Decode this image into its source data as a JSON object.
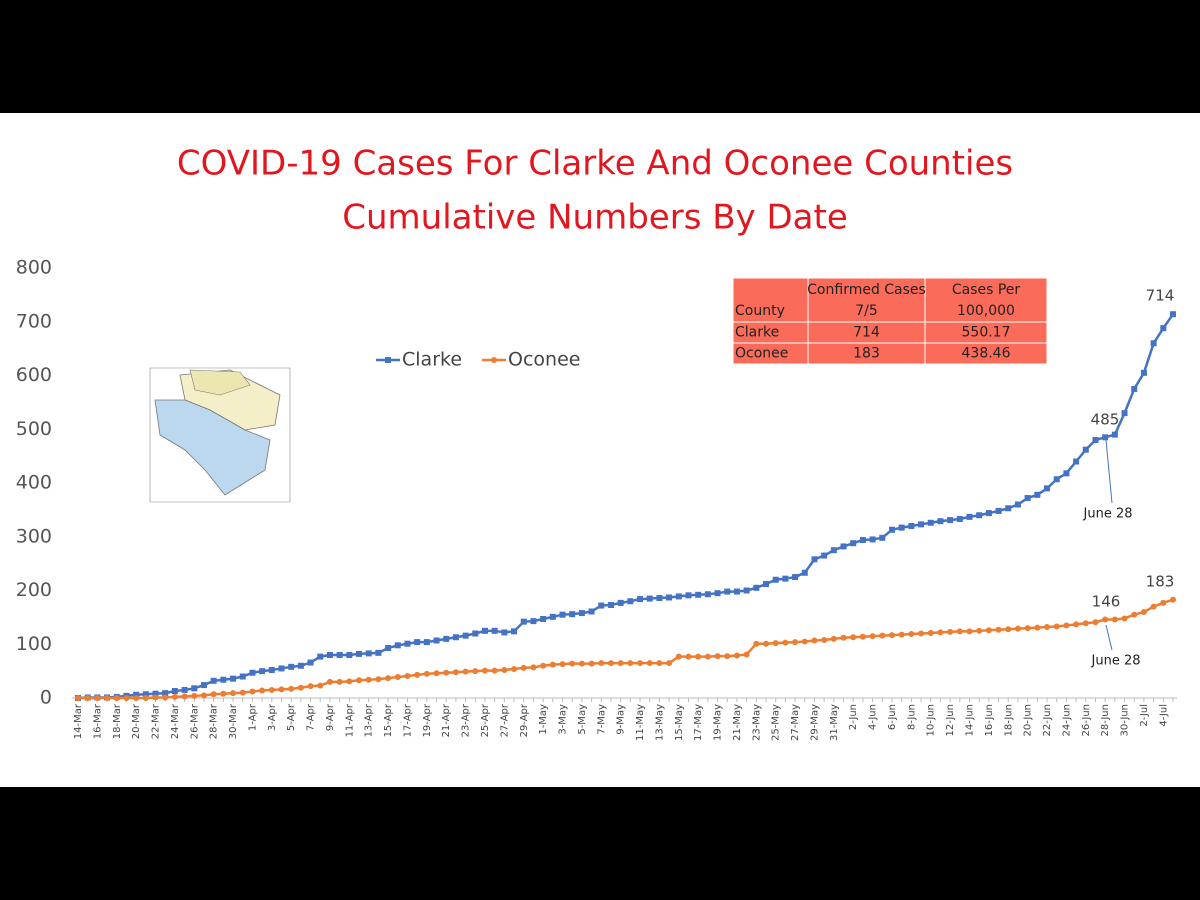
{
  "chart_data": {
    "type": "line",
    "title": "COVID-19 Cases For Clarke And Oconee Counties",
    "subtitle": "Cumulative Numbers By Date",
    "categories": [
      "14-Mar",
      null,
      "16-Mar",
      null,
      "18-Mar",
      null,
      "20-Mar",
      null,
      "22-Mar",
      null,
      "24-Mar",
      null,
      "26-Mar",
      null,
      "28-Mar",
      null,
      "30-Mar",
      null,
      "1-Apr",
      null,
      "3-Apr",
      null,
      "5-Apr",
      null,
      "7-Apr",
      null,
      "9-Apr",
      null,
      "11-Apr",
      null,
      "13-Apr",
      null,
      "15-Apr",
      null,
      "17-Apr",
      null,
      "19-Apr",
      null,
      "21-Apr",
      null,
      "23-Apr",
      null,
      "25-Apr",
      null,
      "27-Apr",
      null,
      "29-Apr",
      null,
      "1-May",
      null,
      "3-May",
      null,
      "5-May",
      null,
      "7-May",
      null,
      "9-May",
      null,
      "11-May",
      null,
      "13-May",
      null,
      "15-May",
      null,
      "17-May",
      null,
      "19-May",
      null,
      "21-May",
      null,
      "23-May",
      null,
      "25-May",
      null,
      "27-May",
      null,
      "29-May",
      null,
      "31-May",
      null,
      "2-Jun",
      null,
      "4-Jun",
      null,
      "6-Jun",
      null,
      "8-Jun",
      null,
      "10-Jun",
      null,
      "12-Jun",
      null,
      "14-Jun",
      null,
      "16-Jun",
      null,
      "18-Jun",
      null,
      "20-Jun",
      null,
      "22-Jun",
      null,
      "24-Jun",
      null,
      "26-Jun",
      null,
      "28-Jun",
      null,
      "30-Jun",
      null,
      "2-Jul",
      null,
      "4-Jul",
      null
    ],
    "series": [
      {
        "name": "Clarke",
        "color": "#4472c4",
        "values": [
          0,
          1,
          1,
          1,
          2,
          4,
          6,
          7,
          8,
          9,
          13,
          15,
          18,
          24,
          32,
          34,
          36,
          40,
          47,
          50,
          52,
          55,
          58,
          60,
          66,
          77,
          80,
          80,
          80,
          82,
          83,
          84,
          93,
          98,
          101,
          104,
          104,
          107,
          110,
          113,
          116,
          120,
          125,
          125,
          122,
          124,
          142,
          143,
          147,
          151,
          155,
          156,
          158,
          161,
          172,
          173,
          177,
          180,
          184,
          185,
          186,
          187,
          189,
          191,
          192,
          193,
          195,
          198,
          198,
          200,
          205,
          212,
          220,
          222,
          225,
          233,
          258,
          265,
          275,
          282,
          288,
          294,
          295,
          298,
          313,
          317,
          320,
          323,
          326,
          329,
          331,
          333,
          337,
          340,
          344,
          348,
          353,
          360,
          372,
          378,
          390,
          407,
          418,
          440,
          462,
          480,
          485,
          490,
          530,
          575,
          605,
          660,
          688,
          714
        ]
      },
      {
        "name": "Oconee",
        "color": "#ed7d31",
        "values": [
          0,
          0,
          0,
          0,
          0,
          0,
          0,
          0,
          1,
          1,
          2,
          3,
          4,
          5,
          7,
          8,
          9,
          10,
          12,
          14,
          15,
          16,
          17,
          19,
          22,
          23,
          30,
          30,
          31,
          33,
          34,
          35,
          37,
          39,
          41,
          43,
          45,
          46,
          47,
          48,
          49,
          50,
          51,
          51,
          52,
          54,
          56,
          57,
          60,
          62,
          63,
          64,
          64,
          64,
          65,
          65,
          65,
          65,
          65,
          65,
          65,
          65,
          77,
          77,
          77,
          77,
          78,
          78,
          79,
          81,
          101,
          101,
          102,
          103,
          104,
          105,
          107,
          108,
          110,
          112,
          113,
          114,
          115,
          116,
          117,
          118,
          119,
          120,
          121,
          122,
          123,
          124,
          124,
          125,
          126,
          127,
          128,
          129,
          130,
          131,
          132,
          133,
          135,
          137,
          139,
          141,
          146,
          146,
          148,
          155,
          160,
          170,
          177,
          183
        ]
      }
    ],
    "ylim": [
      0,
      800
    ],
    "yticks": [
      0,
      100,
      200,
      300,
      400,
      500,
      600,
      700,
      800
    ],
    "grid": false,
    "legend": "top",
    "annotations": [
      "714",
      "485",
      "June 28",
      "183",
      "146",
      "June 28"
    ],
    "table": {
      "header": [
        "County",
        "Confirmed Cases 7/5",
        "Cases Per 100,000"
      ],
      "rows": [
        [
          "Clarke",
          "714",
          "550.17"
        ],
        [
          "Oconee",
          "183",
          "438.46"
        ]
      ]
    }
  }
}
